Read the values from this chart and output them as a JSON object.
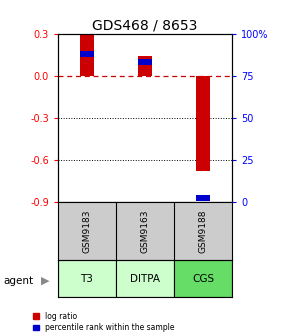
{
  "title": "GDS468 / 8653",
  "samples": [
    "GSM9183",
    "GSM9163",
    "GSM9188"
  ],
  "agents": [
    "T3",
    "DITPA",
    "CGS"
  ],
  "log_ratios": [
    0.29,
    0.14,
    -0.68
  ],
  "percentile_ranks": [
    88,
    83,
    2
  ],
  "ylim_left": [
    -0.9,
    0.3
  ],
  "ylim_right": [
    0,
    100
  ],
  "left_ticks": [
    0.3,
    0.0,
    -0.3,
    -0.6,
    -0.9
  ],
  "right_ticks": [
    100,
    75,
    50,
    25,
    0
  ],
  "bar_color_red": "#cc0000",
  "bar_color_blue": "#0000cc",
  "agent_colors": [
    "#ccffcc",
    "#ccffcc",
    "#66dd66"
  ],
  "sample_bg": "#cccccc",
  "legend_red": "log ratio",
  "legend_blue": "percentile rank within the sample",
  "agent_label": "agent",
  "title_fontsize": 10,
  "tick_fontsize": 7,
  "bar_width": 0.25
}
